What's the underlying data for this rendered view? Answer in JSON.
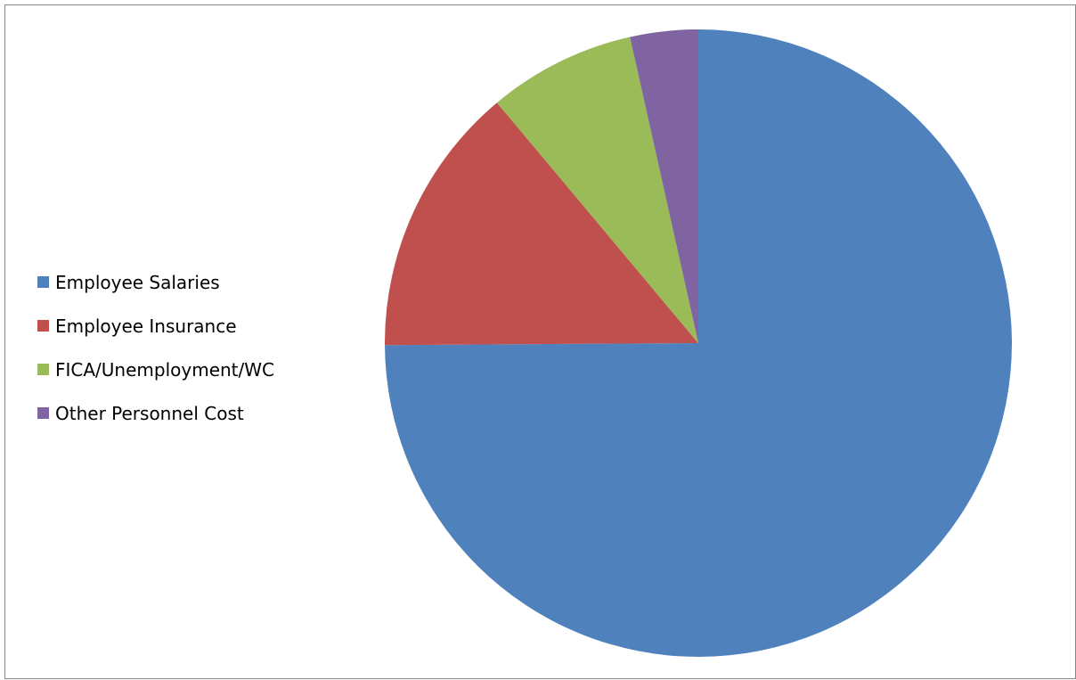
{
  "chart_data": {
    "type": "pie",
    "title": "",
    "legend_position": "left",
    "start_angle": "12 o'clock",
    "direction": "clockwise",
    "slices": [
      {
        "label": "Employee Salaries",
        "value": 74.9,
        "color": "#4F81BD"
      },
      {
        "label": "Employee Insurance",
        "value": 14.0,
        "color": "#C0504D"
      },
      {
        "label": "FICA/Unemployment/WC",
        "value": 7.6,
        "color": "#9BBB59"
      },
      {
        "label": "Other Personnel Cost",
        "value": 3.5,
        "color": "#8064A2"
      }
    ]
  }
}
